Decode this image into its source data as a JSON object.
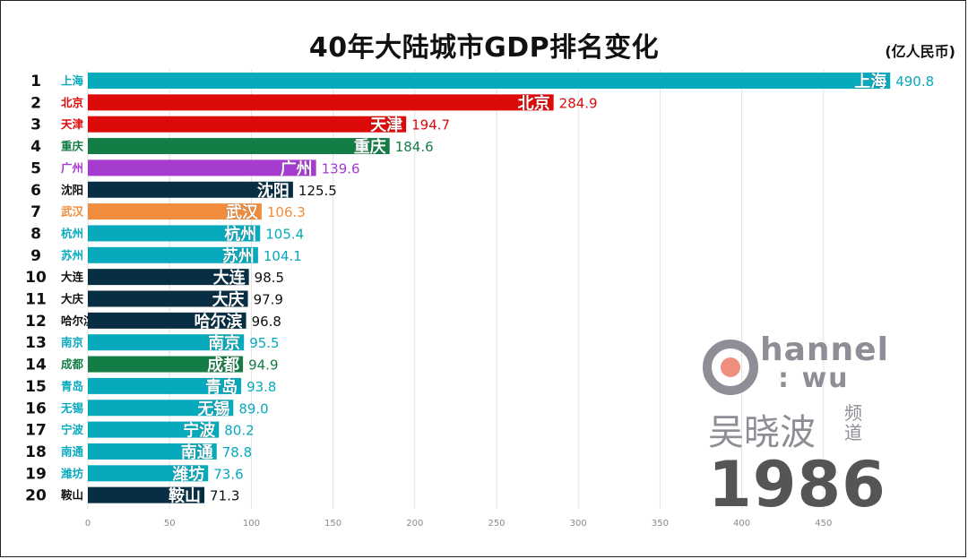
{
  "title": "40年大陆城市GDP排名变化",
  "unit": "(亿人民币)",
  "year": "1986",
  "logo": {
    "channel": "hannel",
    "wu": ": wu",
    "name": "吴晓波",
    "suffix": "频道"
  },
  "colors": {
    "teal": "#07a9bd",
    "red": "#dd0a0a",
    "green": "#137d45",
    "purple": "#a63bd0",
    "navy": "#072e42",
    "orange": "#f08c3b",
    "logo_gray": "#8e8e96",
    "logo_dot": "#ee8f7e"
  },
  "chart_data": {
    "type": "bar",
    "orientation": "horizontal",
    "xlim": [
      0,
      500
    ],
    "xticks": [
      0,
      50,
      100,
      150,
      200,
      250,
      300,
      350,
      400,
      450
    ],
    "grid": true,
    "bars": [
      {
        "rank": "1",
        "city": "上海",
        "value": 490.8,
        "label": "490.8",
        "color": "teal"
      },
      {
        "rank": "2",
        "city": "北京",
        "value": 284.9,
        "label": "284.9",
        "color": "red"
      },
      {
        "rank": "3",
        "city": "天津",
        "value": 194.7,
        "label": "194.7",
        "color": "red"
      },
      {
        "rank": "4",
        "city": "重庆",
        "value": 184.6,
        "label": "184.6",
        "color": "green"
      },
      {
        "rank": "5",
        "city": "广州",
        "value": 139.6,
        "label": "139.6",
        "color": "purple"
      },
      {
        "rank": "6",
        "city": "沈阳",
        "value": 125.5,
        "label": "125.5",
        "color": "navy"
      },
      {
        "rank": "7",
        "city": "武汉",
        "value": 106.3,
        "label": "106.3",
        "color": "orange"
      },
      {
        "rank": "8",
        "city": "杭州",
        "value": 105.4,
        "label": "105.4",
        "color": "teal"
      },
      {
        "rank": "9",
        "city": "苏州",
        "value": 104.1,
        "label": "104.1",
        "color": "teal"
      },
      {
        "rank": "10",
        "city": "大连",
        "value": 98.5,
        "label": "98.5",
        "color": "navy"
      },
      {
        "rank": "11",
        "city": "大庆",
        "value": 97.9,
        "label": "97.9",
        "color": "navy"
      },
      {
        "rank": "12",
        "city": "哈尔滨",
        "value": 96.8,
        "label": "96.8",
        "color": "navy"
      },
      {
        "rank": "13",
        "city": "南京",
        "value": 95.5,
        "label": "95.5",
        "color": "teal"
      },
      {
        "rank": "14",
        "city": "成都",
        "value": 94.9,
        "label": "94.9",
        "color": "green"
      },
      {
        "rank": "15",
        "city": "青岛",
        "value": 93.8,
        "label": "93.8",
        "color": "teal"
      },
      {
        "rank": "16",
        "city": "无锡",
        "value": 89.0,
        "label": "89.0",
        "color": "teal"
      },
      {
        "rank": "17",
        "city": "宁波",
        "value": 80.2,
        "label": "80.2",
        "color": "teal"
      },
      {
        "rank": "18",
        "city": "南通",
        "value": 78.8,
        "label": "78.8",
        "color": "teal"
      },
      {
        "rank": "19",
        "city": "潍坊",
        "value": 73.6,
        "label": "73.6",
        "color": "teal"
      },
      {
        "rank": "20",
        "city": "鞍山",
        "value": 71.3,
        "label": "71.3",
        "color": "navy"
      }
    ]
  }
}
